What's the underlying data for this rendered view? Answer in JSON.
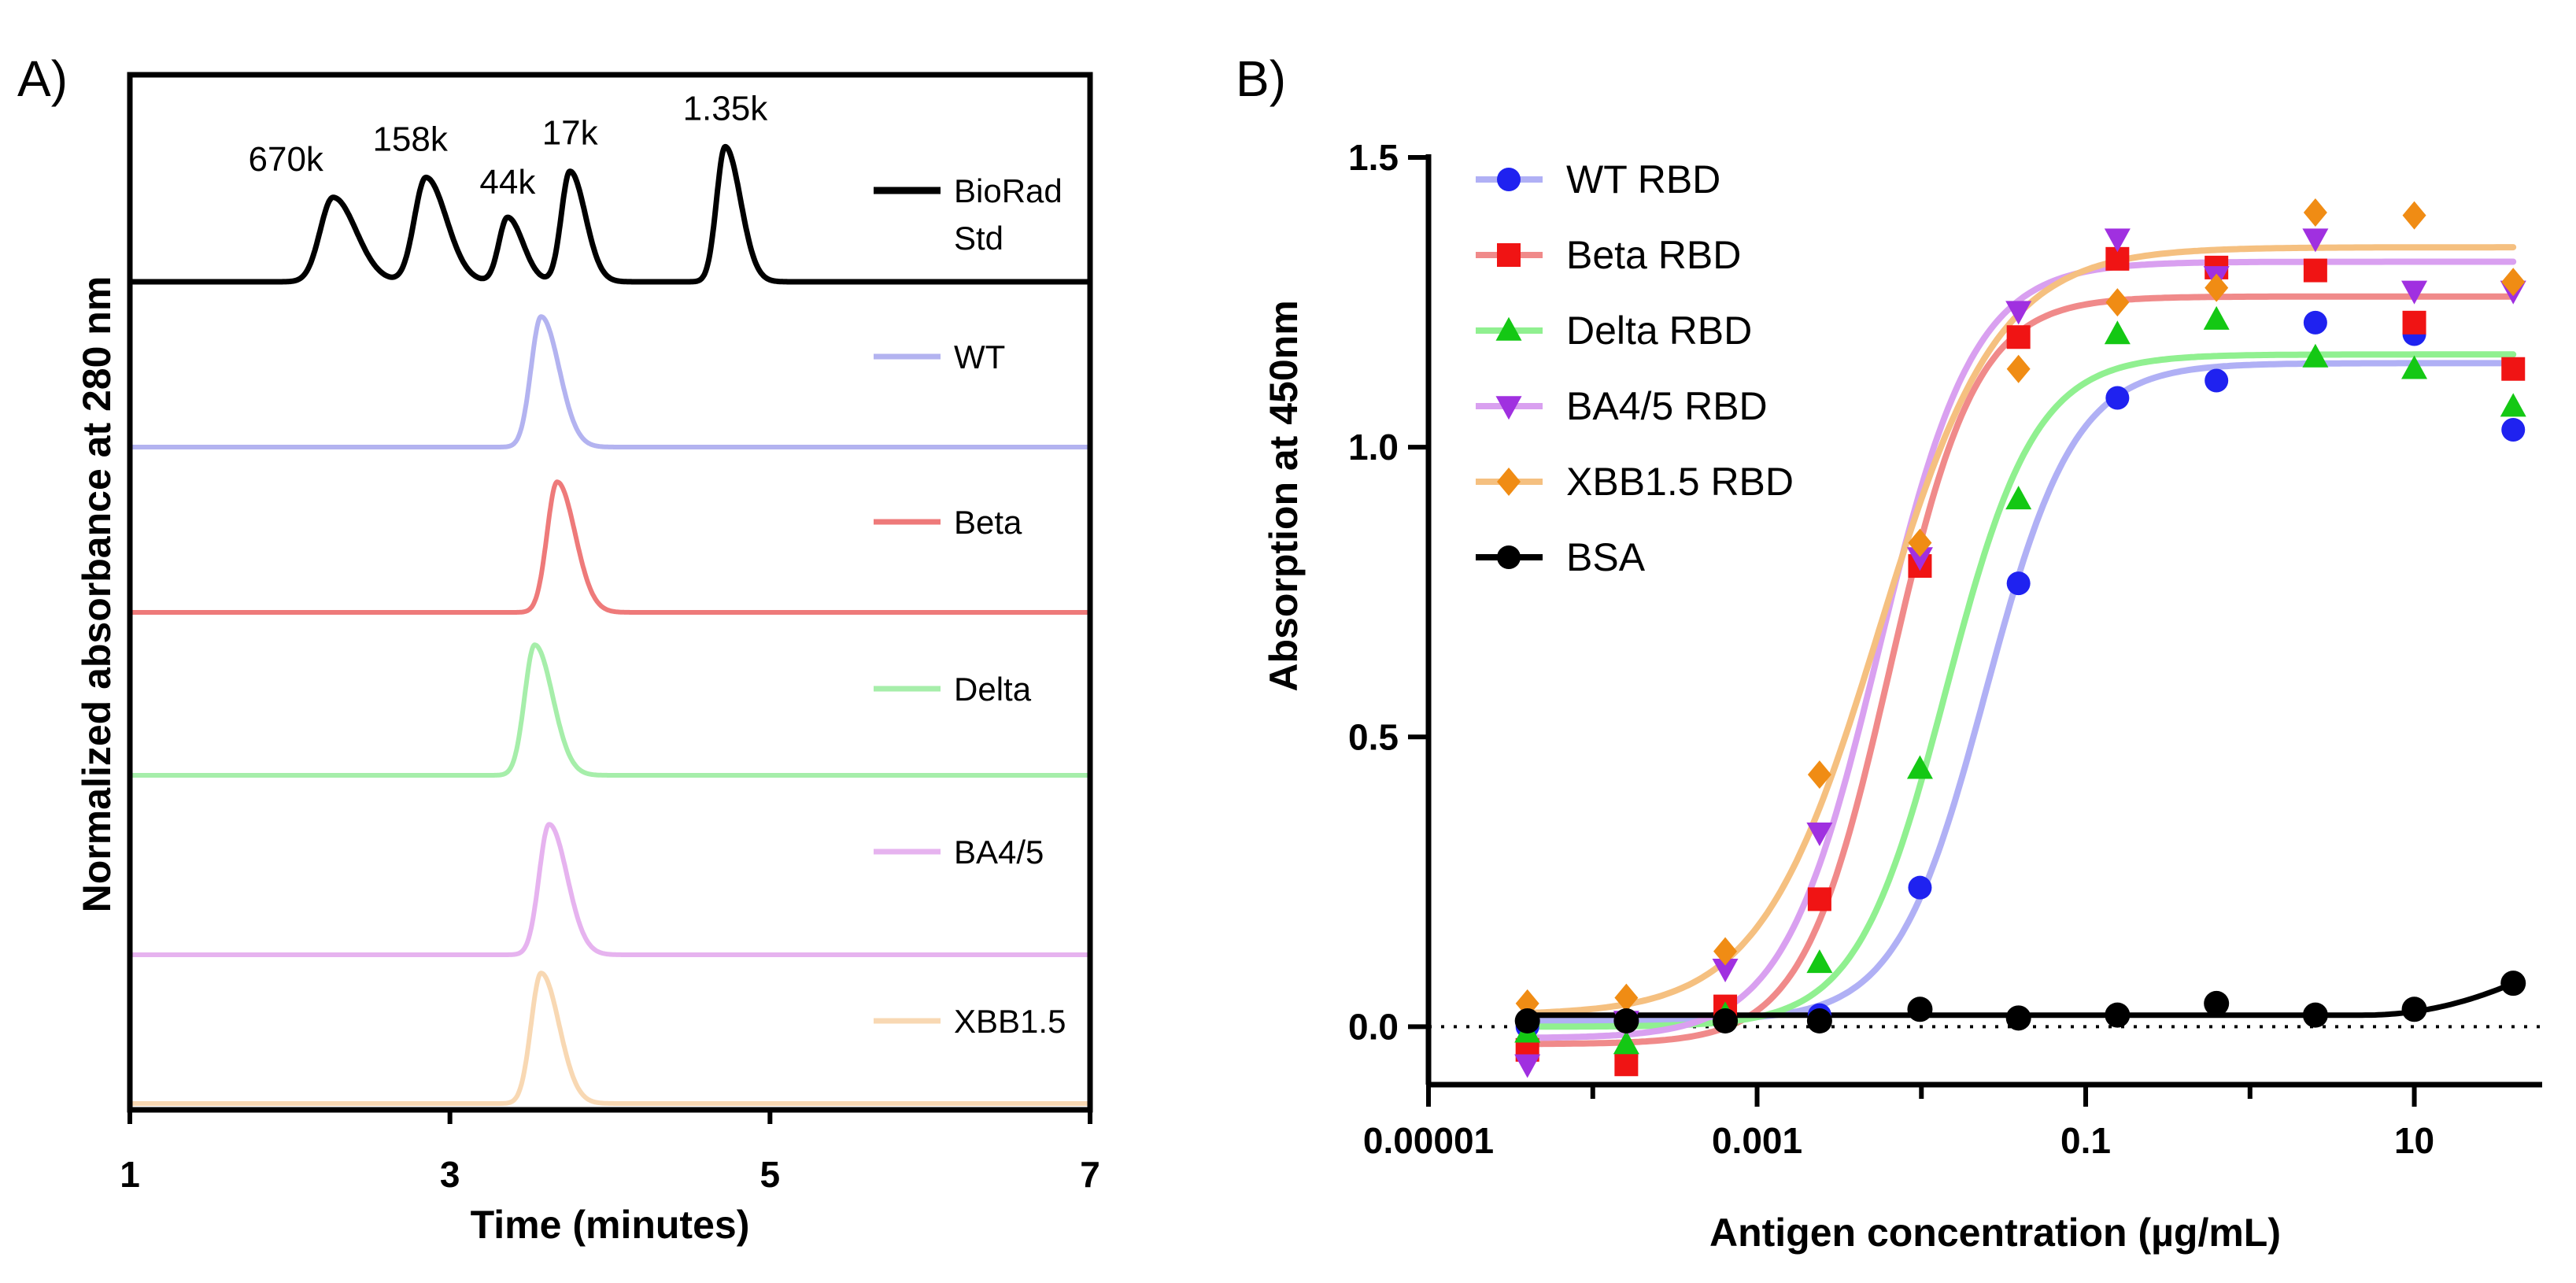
{
  "chart_data": [
    {
      "panel": "A)",
      "type": "line",
      "xlabel": "Time (minutes)",
      "ylabel": "Normalized absorbance at 280 nm",
      "xlim": [
        1,
        7
      ],
      "x_ticks": [
        "1",
        "3",
        "5",
        "7"
      ],
      "layout": "stacked traces, legend inside plot at right",
      "peak_labels": [
        "670k",
        "158k",
        "44k",
        "17k",
        "1.35k"
      ],
      "series": [
        {
          "name": "BioRad Std",
          "color": "#000000",
          "peaks": [
            {
              "x": 2.27,
              "height": 0.55,
              "width": 0.09
            },
            {
              "x": 2.85,
              "height": 0.68,
              "width": 0.08
            },
            {
              "x": 3.36,
              "height": 0.42,
              "width": 0.06
            },
            {
              "x": 3.75,
              "height": 0.72,
              "width": 0.06
            },
            {
              "x": 4.72,
              "height": 0.88,
              "width": 0.06
            }
          ]
        },
        {
          "name": "WT",
          "color": "#b3b3f0",
          "peaks": [
            {
              "x": 3.57,
              "height": 0.85,
              "width": 0.07
            }
          ]
        },
        {
          "name": "Beta",
          "color": "#ee7a7a",
          "peaks": [
            {
              "x": 3.67,
              "height": 0.85,
              "width": 0.07
            }
          ]
        },
        {
          "name": "Delta",
          "color": "#a6eeaa",
          "peaks": [
            {
              "x": 3.53,
              "height": 0.85,
              "width": 0.07
            }
          ]
        },
        {
          "name": "BA4/5",
          "color": "#e6b3ef",
          "peaks": [
            {
              "x": 3.62,
              "height": 0.85,
              "width": 0.07
            }
          ]
        },
        {
          "name": "XBB1.5",
          "color": "#f8d8b3",
          "peaks": [
            {
              "x": 3.57,
              "height": 0.85,
              "width": 0.07
            }
          ]
        }
      ]
    },
    {
      "panel": "B)",
      "type": "scatter",
      "xlabel": "Antigen concentration (µg/mL)",
      "ylabel": "Absorption at 450nm",
      "x_scale": "log",
      "xlim": [
        1e-05,
        60
      ],
      "ylim": [
        -0.1,
        1.5
      ],
      "x_ticks": [
        "0.00001",
        "0.001",
        "0.1",
        "10"
      ],
      "y_ticks": [
        "0.0",
        "0.5",
        "1.0",
        "1.5"
      ],
      "reference_line": {
        "y": 0.0,
        "style": "dotted"
      },
      "legend": "top-left",
      "x": [
        4e-05,
        0.00016,
        0.00064,
        0.0024,
        0.0098,
        0.039,
        0.156,
        0.625,
        2.5,
        10,
        40
      ],
      "series": [
        {
          "name": "WT  RBD",
          "marker": "circle",
          "color": "#1f22f0",
          "curve_color": "#b0b0f5",
          "values": [
            0.0,
            -0.05,
            0.01,
            0.02,
            0.24,
            0.765,
            1.085,
            1.115,
            1.215,
            1.195,
            1.03
          ],
          "fit": {
            "bottom": 0.01,
            "top": 1.145,
            "ec50": 0.0246,
            "hill": 1.6
          }
        },
        {
          "name": "Beta RBD",
          "marker": "square",
          "color": "#f01414",
          "curve_color": "#f08a8a",
          "values": [
            -0.04,
            -0.065,
            0.035,
            0.22,
            0.795,
            1.19,
            1.325,
            1.31,
            1.305,
            1.215,
            1.135
          ],
          "fit": {
            "bottom": -0.03,
            "top": 1.26,
            "ec50": 0.0064,
            "hill": 1.65
          }
        },
        {
          "name": "Delta RBD",
          "marker": "triangle-up",
          "color": "#14c814",
          "curve_color": "#90f090",
          "values": [
            -0.01,
            -0.03,
            0.02,
            0.11,
            0.445,
            0.91,
            1.195,
            1.22,
            1.155,
            1.135,
            1.07
          ],
          "fit": {
            "bottom": 0.0,
            "top": 1.16,
            "ec50": 0.0141,
            "hill": 1.6
          }
        },
        {
          "name": "BA4/5 RBD",
          "marker": "triangle-down",
          "color": "#a030e0",
          "curve_color": "#d9a0f0",
          "values": [
            -0.065,
            0.01,
            0.1,
            0.335,
            0.81,
            1.235,
            1.36,
            1.295,
            1.36,
            1.27,
            1.27
          ],
          "fit": {
            "bottom": -0.02,
            "top": 1.32,
            "ec50": 0.0055,
            "hill": 1.5
          }
        },
        {
          "name": "XBB1.5 RBD",
          "marker": "diamond",
          "color": "#f08c14",
          "curve_color": "#f5c080",
          "values": [
            0.04,
            0.05,
            0.13,
            0.435,
            0.835,
            1.135,
            1.25,
            1.275,
            1.405,
            1.4,
            1.285
          ],
          "fit": {
            "bottom": 0.02,
            "top": 1.345,
            "ec50": 0.0055,
            "hill": 1.2
          }
        },
        {
          "name": "BSA",
          "marker": "circle",
          "color": "#000000",
          "curve_color": "#000000",
          "values": [
            0.01,
            0.01,
            0.01,
            0.01,
            0.03,
            0.015,
            0.02,
            0.04,
            0.02,
            0.03,
            0.075
          ],
          "fit": {
            "baseline": 0.02,
            "rise": 0.055,
            "rise_start": 5,
            "rise_end": 40
          }
        }
      ]
    }
  ]
}
